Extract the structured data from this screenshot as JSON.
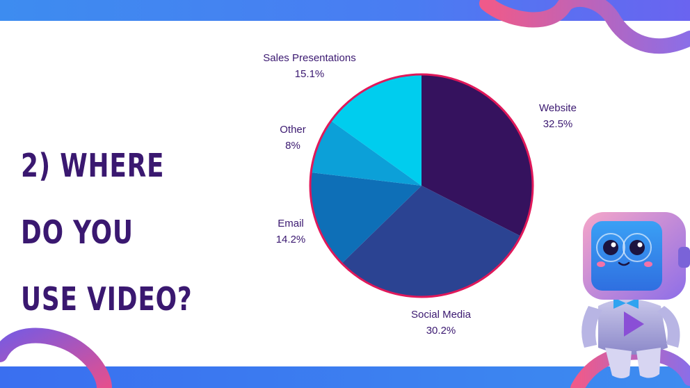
{
  "headline": {
    "line1": "2) WHERE DO YOU",
    "line2": "USE VIDEO?"
  },
  "chart_data": {
    "type": "pie",
    "title": "",
    "slices": [
      {
        "label": "Website",
        "value": 32.5,
        "value_label": "32.5%",
        "color": "#35125e"
      },
      {
        "label": "Social Media",
        "value": 30.2,
        "value_label": "30.2%",
        "color": "#2b4392"
      },
      {
        "label": "Email",
        "value": 14.2,
        "value_label": "14.2%",
        "color": "#0e6fb7"
      },
      {
        "label": "Other",
        "value": 8,
        "value_label": "8%",
        "color": "#0ca0d8"
      },
      {
        "label": "Sales Presentations",
        "value": 15.1,
        "value_label": "15.1%",
        "color": "#00cdee"
      }
    ],
    "start_angle_deg": 0,
    "direction": "clockwise",
    "border_color": "#e0185a"
  },
  "colors": {
    "accent_blue": "#3d8cf0",
    "headline": "#3a1870",
    "swirl_pink": "#e7508c",
    "swirl_purple": "#8a5ee8"
  }
}
